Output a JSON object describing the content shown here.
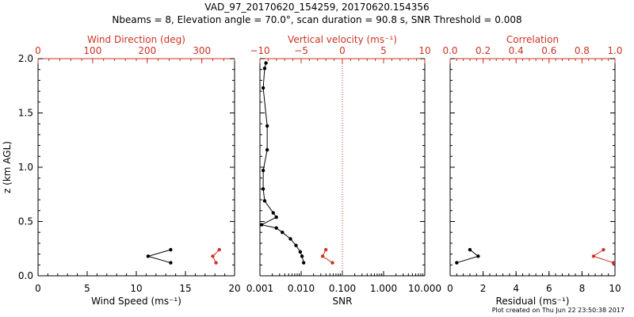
{
  "header": {
    "title": "VAD_97_20170620_154259, 20170620.154356",
    "subtitle": "Nbeams = 8, Elevation angle = 70.0°, scan duration = 90.8 s, SNR Threshold = 0.008"
  },
  "footer": "Plot created on Thu Jun 22 23:50:38 2017",
  "colors": {
    "primary": "#000000",
    "secondary": "#cc3322"
  },
  "chart_data": [
    {
      "type": "line",
      "xlabel": "Wind Speed (ms⁻¹)",
      "ylabel": "z (km AGL)",
      "xlim": [
        0,
        20
      ],
      "ylim": [
        0,
        2
      ],
      "x_ticks": [
        "0",
        "5",
        "10",
        "15",
        "20"
      ],
      "y_ticks": [
        "0.0",
        "0.5",
        "1.0",
        "1.5",
        "2.0"
      ],
      "top_axis": {
        "label": "Wind Direction (deg)",
        "lim": [
          0,
          360
        ],
        "ticks": [
          "0",
          "100",
          "200",
          "300"
        ]
      },
      "series": [
        {
          "axis": "bottom",
          "color": "#000000",
          "x": [
            13.5,
            11.2,
            13.5
          ],
          "y": [
            0.24,
            0.18,
            0.12
          ]
        },
        {
          "axis": "top",
          "color": "#cc3322",
          "x": [
            332,
            320,
            326
          ],
          "y": [
            0.24,
            0.18,
            0.12
          ]
        }
      ]
    },
    {
      "type": "line",
      "xlabel": "SNR",
      "xlim": [
        0.001,
        10
      ],
      "x_scale": "log",
      "x_ticks": [
        "0.001",
        "0.010",
        "0.100",
        "1.000",
        "10.000"
      ],
      "ylim": [
        0,
        2
      ],
      "top_axis": {
        "label": "Vertical velocity (ms⁻¹)",
        "lim": [
          -10,
          10
        ],
        "ticks": [
          "−10",
          "−5",
          "0",
          "5",
          "10"
        ],
        "zero_line": "dotted"
      },
      "series": [
        {
          "axis": "bottom",
          "color": "#000000",
          "x": [
            0.0014,
            0.0013,
            0.0012,
            0.0015,
            0.0015,
            0.0012,
            0.0012,
            0.0013,
            0.0021,
            0.0025,
            0.0011,
            0.0025,
            0.0035,
            0.0055,
            0.0075,
            0.0095,
            0.0105,
            0.0115
          ],
          "y": [
            1.96,
            1.91,
            1.73,
            1.38,
            1.16,
            0.97,
            0.8,
            0.69,
            0.58,
            0.54,
            0.47,
            0.44,
            0.4,
            0.34,
            0.28,
            0.22,
            0.18,
            0.12
          ]
        },
        {
          "axis": "top",
          "color": "#cc3322",
          "x": [
            -2.0,
            -2.4,
            -1.2
          ],
          "y": [
            0.24,
            0.18,
            0.12
          ]
        }
      ]
    },
    {
      "type": "line",
      "xlabel": "Residual (ms⁻¹)",
      "xlim": [
        0,
        10
      ],
      "ylim": [
        0,
        2
      ],
      "x_ticks": [
        "0",
        "2",
        "4",
        "6",
        "8",
        "10"
      ],
      "top_axis": {
        "label": "Correlation",
        "lim": [
          0,
          1
        ],
        "ticks": [
          "0.0",
          "0.2",
          "0.4",
          "0.6",
          "0.8",
          "1.0"
        ]
      },
      "series": [
        {
          "axis": "bottom",
          "color": "#000000",
          "x": [
            1.2,
            1.7,
            0.4
          ],
          "y": [
            0.24,
            0.18,
            0.12
          ]
        },
        {
          "axis": "top",
          "color": "#cc3322",
          "x": [
            0.93,
            0.87,
            0.99
          ],
          "y": [
            0.24,
            0.18,
            0.12
          ]
        }
      ]
    }
  ]
}
